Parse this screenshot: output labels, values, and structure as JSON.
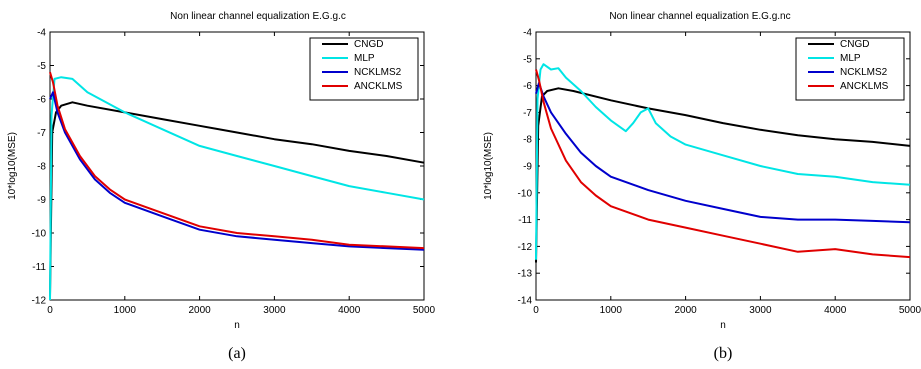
{
  "chart_data": [
    {
      "type": "line",
      "title": "Non linear channel equalization E.G.g.c",
      "xlabel": "n",
      "ylabel": "10*log10(MSE)",
      "caption": "(a)",
      "xlim": [
        0,
        5000
      ],
      "ylim": [
        -12,
        -4
      ],
      "xticks": [
        0,
        1000,
        2000,
        3000,
        4000,
        5000
      ],
      "yticks": [
        -12,
        -11,
        -10,
        -9,
        -8,
        -7,
        -6,
        -5,
        -4
      ],
      "xtick_labels": [
        "0",
        "1000",
        "2000",
        "3000",
        "4000",
        "5000"
      ],
      "ytick_labels": [
        "-12",
        "-11",
        "-10",
        "-9",
        "-8",
        "-7",
        "-6",
        "-5",
        "-4"
      ],
      "grid": false,
      "legend_position": "top-right",
      "series": [
        {
          "name": "CNGD",
          "color": "#000000",
          "x": [
            0,
            30,
            80,
            150,
            300,
            500,
            1000,
            1500,
            2000,
            2500,
            3000,
            3500,
            4000,
            4500,
            5000
          ],
          "y": [
            -11.9,
            -7.0,
            -6.4,
            -6.2,
            -6.1,
            -6.2,
            -6.4,
            -6.6,
            -6.8,
            -7.0,
            -7.2,
            -7.35,
            -7.55,
            -7.7,
            -7.9
          ]
        },
        {
          "name": "MLP",
          "color": "#00e5e5",
          "x": [
            0,
            20,
            60,
            150,
            300,
            500,
            1000,
            1500,
            2000,
            2500,
            3000,
            3500,
            4000,
            4500,
            5000
          ],
          "y": [
            -12.0,
            -6.5,
            -5.4,
            -5.35,
            -5.4,
            -5.8,
            -6.4,
            -6.9,
            -7.4,
            -7.7,
            -8.0,
            -8.3,
            -8.6,
            -8.8,
            -9.0
          ]
        },
        {
          "name": "NCKLMS2",
          "color": "#0000cc",
          "x": [
            0,
            40,
            100,
            200,
            400,
            600,
            800,
            1000,
            1500,
            2000,
            2500,
            3000,
            3500,
            4000,
            4500,
            5000
          ],
          "y": [
            -6.0,
            -5.8,
            -6.4,
            -7.0,
            -7.8,
            -8.4,
            -8.8,
            -9.1,
            -9.5,
            -9.9,
            -10.1,
            -10.2,
            -10.3,
            -10.4,
            -10.45,
            -10.5
          ]
        },
        {
          "name": "ANCKLMS",
          "color": "#e00000",
          "x": [
            0,
            40,
            100,
            200,
            400,
            600,
            800,
            1000,
            1500,
            2000,
            2500,
            3000,
            3500,
            4000,
            4500,
            5000
          ],
          "y": [
            -5.2,
            -5.5,
            -6.2,
            -6.9,
            -7.7,
            -8.3,
            -8.7,
            -9.0,
            -9.4,
            -9.8,
            -10.0,
            -10.1,
            -10.2,
            -10.35,
            -10.4,
            -10.45
          ]
        }
      ]
    },
    {
      "type": "line",
      "title": "Non linear channel equalization E.G.g.nc",
      "xlabel": "n",
      "ylabel": "10*log10(MSE)",
      "caption": "(b)",
      "xlim": [
        0,
        5000
      ],
      "ylim": [
        -14,
        -4
      ],
      "xticks": [
        0,
        1000,
        2000,
        3000,
        4000,
        5000
      ],
      "yticks": [
        -14,
        -13,
        -12,
        -11,
        -10,
        -9,
        -8,
        -7,
        -6,
        -5,
        -4
      ],
      "xtick_labels": [
        "0",
        "1000",
        "2000",
        "3000",
        "4000",
        "5000"
      ],
      "ytick_labels": [
        "-14",
        "-13",
        "-12",
        "-11",
        "-10",
        "-9",
        "-8",
        "-7",
        "-6",
        "-5",
        "-4"
      ],
      "grid": false,
      "legend_position": "top-right",
      "series": [
        {
          "name": "CNGD",
          "color": "#000000",
          "x": [
            0,
            30,
            80,
            150,
            300,
            500,
            1000,
            1500,
            2000,
            2500,
            3000,
            3500,
            4000,
            4500,
            5000
          ],
          "y": [
            -12.6,
            -7.5,
            -6.4,
            -6.2,
            -6.1,
            -6.2,
            -6.55,
            -6.85,
            -7.1,
            -7.4,
            -7.65,
            -7.85,
            -8.0,
            -8.1,
            -8.25
          ]
        },
        {
          "name": "MLP",
          "color": "#00e5e5",
          "x": [
            0,
            20,
            60,
            100,
            200,
            300,
            400,
            600,
            800,
            1000,
            1200,
            1300,
            1400,
            1500,
            1600,
            1800,
            2000,
            2500,
            3000,
            3500,
            4000,
            4500,
            5000
          ],
          "y": [
            -12.5,
            -6.5,
            -5.4,
            -5.2,
            -5.4,
            -5.35,
            -5.7,
            -6.2,
            -6.8,
            -7.3,
            -7.7,
            -7.4,
            -7.0,
            -6.85,
            -7.4,
            -7.9,
            -8.2,
            -8.6,
            -9.0,
            -9.3,
            -9.4,
            -9.6,
            -9.7
          ]
        },
        {
          "name": "NCKLMS2",
          "color": "#0000cc",
          "x": [
            0,
            40,
            100,
            200,
            400,
            600,
            800,
            1000,
            1500,
            2000,
            2500,
            3000,
            3500,
            4000,
            4500,
            5000
          ],
          "y": [
            -6.3,
            -5.9,
            -6.4,
            -7.0,
            -7.8,
            -8.5,
            -9.0,
            -9.4,
            -9.9,
            -10.3,
            -10.6,
            -10.9,
            -11.0,
            -11.0,
            -11.05,
            -11.1
          ]
        },
        {
          "name": "ANCKLMS",
          "color": "#e00000",
          "x": [
            0,
            40,
            100,
            200,
            400,
            600,
            800,
            1000,
            1500,
            2000,
            2500,
            3000,
            3500,
            4000,
            4500,
            5000
          ],
          "y": [
            -5.4,
            -5.8,
            -6.6,
            -7.6,
            -8.8,
            -9.6,
            -10.1,
            -10.5,
            -11.0,
            -11.3,
            -11.6,
            -11.9,
            -12.2,
            -12.1,
            -12.3,
            -12.4
          ]
        }
      ]
    }
  ]
}
